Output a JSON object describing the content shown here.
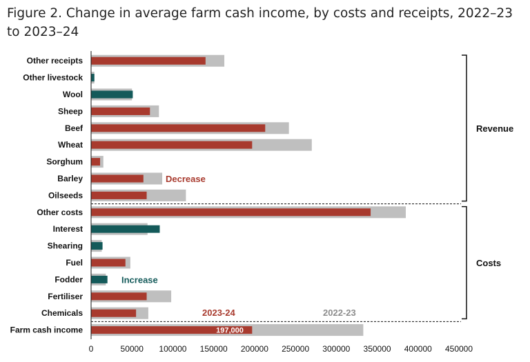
{
  "figure": {
    "title": "Figure 2. Change in average farm cash income, by costs and receipts, 2022–23 to 2023–24"
  },
  "chart_data": {
    "type": "bar",
    "orientation": "horizontal",
    "title": "Figure 2. Change in average farm cash income, by costs and receipts, 2022–23 to 2023–24",
    "categories": [
      "Other receipts",
      "Other livestock",
      "Wool",
      "Sheep",
      "Beef",
      "Wheat",
      "Sorghum",
      "Barley",
      "Oilseeds",
      "Other costs",
      "Interest",
      "Shearing",
      "Fuel",
      "Fodder",
      "Fertiliser",
      "Chemicals",
      "Farm cash income"
    ],
    "series": [
      {
        "name": "2022-23",
        "values": [
          163000,
          4000,
          50000,
          83000,
          242000,
          270000,
          15000,
          87000,
          116000,
          385000,
          69000,
          13000,
          48000,
          18000,
          98000,
          70000,
          333000
        ]
      },
      {
        "name": "2023-24",
        "values": [
          140000,
          4000,
          51000,
          72000,
          213000,
          197000,
          11000,
          64000,
          68000,
          342000,
          84000,
          14000,
          42000,
          20000,
          68000,
          55000,
          197000
        ]
      }
    ],
    "direction": [
      "decrease",
      "increase",
      "increase",
      "decrease",
      "decrease",
      "decrease",
      "decrease",
      "decrease",
      "decrease",
      "decrease",
      "increase",
      "increase",
      "decrease",
      "increase",
      "decrease",
      "decrease",
      "decrease"
    ],
    "xlim": [
      0,
      450000
    ],
    "xticks": [
      "0",
      "50000",
      "100000",
      "150000",
      "200000",
      "250000",
      "300000",
      "350000",
      "400000",
      "450000"
    ],
    "groups": [
      {
        "label": "Revenue",
        "from": 0,
        "to": 8
      },
      {
        "label": "Costs",
        "from": 9,
        "to": 15
      }
    ],
    "annotations": {
      "decrease": "Decrease",
      "increase": "Increase",
      "series_2023_24": "2023-24",
      "series_2022_23": "2022-23",
      "farm_cash_income_value": "197,000"
    },
    "colors": {
      "prior_year": "#bfbfbf",
      "decrease": "#a83a2e",
      "increase": "#145a5a",
      "prior_label": "#8c8c8c",
      "value_label": "#ffffff"
    },
    "grid": false,
    "legend": "inline annotations"
  }
}
